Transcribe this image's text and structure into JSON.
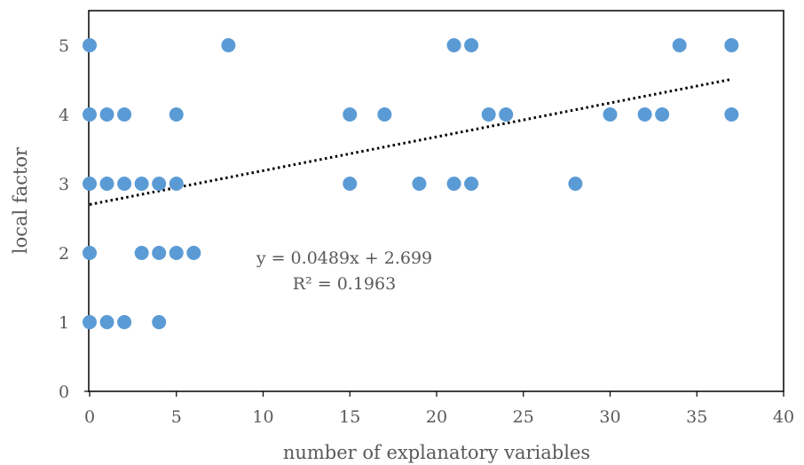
{
  "chart_data": {
    "type": "scatter",
    "title": "",
    "xlabel": "number of explanatory variables",
    "ylabel": "local factor",
    "xlim": [
      0,
      40
    ],
    "ylim": [
      0,
      5.5
    ],
    "xticks": [
      0,
      5,
      10,
      15,
      20,
      25,
      30,
      35,
      40
    ],
    "yticks": [
      0,
      1,
      2,
      3,
      4,
      5
    ],
    "grid": false,
    "legend": "none",
    "marker_color": "#5b9bd5",
    "trendline_color": "#000000",
    "series": [
      {
        "points": [
          [
            0,
            5
          ],
          [
            8,
            5
          ],
          [
            21,
            5
          ],
          [
            22,
            5
          ],
          [
            34,
            5
          ],
          [
            37,
            5
          ],
          [
            0,
            4
          ],
          [
            1,
            4
          ],
          [
            2,
            4
          ],
          [
            5,
            4
          ],
          [
            15,
            4
          ],
          [
            17,
            4
          ],
          [
            23,
            4
          ],
          [
            24,
            4
          ],
          [
            30,
            4
          ],
          [
            32,
            4
          ],
          [
            33,
            4
          ],
          [
            37,
            4
          ],
          [
            0,
            3
          ],
          [
            1,
            3
          ],
          [
            2,
            3
          ],
          [
            3,
            3
          ],
          [
            4,
            3
          ],
          [
            5,
            3
          ],
          [
            15,
            3
          ],
          [
            19,
            3
          ],
          [
            21,
            3
          ],
          [
            22,
            3
          ],
          [
            28,
            3
          ],
          [
            0,
            2
          ],
          [
            3,
            2
          ],
          [
            4,
            2
          ],
          [
            5,
            2
          ],
          [
            6,
            2
          ],
          [
            0,
            1
          ],
          [
            1,
            1
          ],
          [
            2,
            1
          ],
          [
            4,
            1
          ]
        ]
      }
    ],
    "trendline": {
      "slope": 0.0489,
      "intercept": 2.699,
      "x_range": [
        0,
        37
      ],
      "equation_label": "y = 0.0489x + 2.699",
      "r2_label": "R² = 0.1963"
    }
  }
}
